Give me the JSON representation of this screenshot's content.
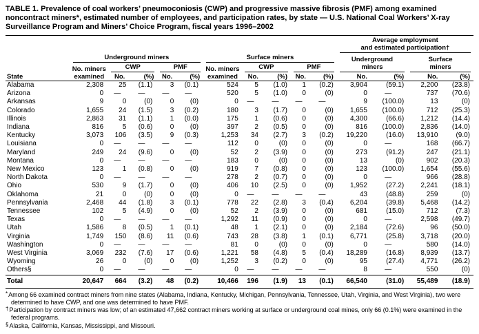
{
  "title": "TABLE 1. Prevalence of coal workers’ pneumoconiosis (CWP) and progressive massive fibrosis (PMF) among examined noncontract miners*, estimated number of employees, and participation rates, by state — U.S. National Coal Workers’ X-ray Surveillance Program and Miners’ Choice Program, fiscal years 1996–2002",
  "header": {
    "state": "State",
    "underground_group": "Underground miners",
    "surface_group": "Surface miners",
    "avg_group_line1": "Average employment",
    "avg_group_line2": "and estimated participation†",
    "examined_line1": "No. miners",
    "examined_line2": "examined",
    "cwp": "CWP",
    "pmf": "PMF",
    "avg_underground_line1": "Underground",
    "avg_underground_line2": "miners",
    "avg_surface_line1": "Surface",
    "avg_surface_line2": "miners",
    "no": "No.",
    "pct": "(%)"
  },
  "table": {
    "rows": [
      {
        "state": "Alabama",
        "cells": [
          "2,308",
          "25",
          "(1.1)",
          "3",
          "(0.1)",
          "524",
          "5",
          "(1.0)",
          "1",
          "(0.2)",
          "3,904",
          "(59.1)",
          "2,200",
          "(23.8)"
        ]
      },
      {
        "state": "Arizona",
        "cells": [
          "0",
          "—",
          "—",
          "—",
          "—",
          "520",
          "5",
          "(1.0)",
          "0",
          "(0)",
          "0",
          "—",
          "737",
          "(70.6)"
        ]
      },
      {
        "state": "Arkansas",
        "cells": [
          "9",
          "0",
          "(0)",
          "0",
          "(0)",
          "0",
          "—",
          "—",
          "—",
          "—",
          "9",
          "(100.0)",
          "13",
          "(0)"
        ]
      },
      {
        "state": "Colorado",
        "cells": [
          "1,655",
          "24",
          "(1.5)",
          "3",
          "(0.2)",
          "180",
          "3",
          "(1.7)",
          "0",
          "(0)",
          "1,655",
          "(100.0)",
          "712",
          "(25.3)"
        ]
      },
      {
        "state": "Illinois",
        "cells": [
          "2,863",
          "31",
          "(1.1)",
          "1",
          "(0.0)",
          "175",
          "1",
          "(0.6)",
          "0",
          "(0)",
          "4,300",
          "(66.6)",
          "1,212",
          "(14.4)"
        ]
      },
      {
        "state": "Indiana",
        "cells": [
          "816",
          "5",
          "(0.6)",
          "0",
          "(0)",
          "397",
          "2",
          "(0.5)",
          "0",
          "(0)",
          "816",
          "(100.0)",
          "2,836",
          "(14.0)"
        ]
      },
      {
        "state": "Kentucky",
        "cells": [
          "3,073",
          "106",
          "(3.5)",
          "9",
          "(0.3)",
          "1,253",
          "34",
          "(2.7)",
          "3",
          "(0.2)",
          "19,220",
          "(16.0)",
          "13,910",
          "(9.0)"
        ]
      },
      {
        "state": "Louisiana",
        "cells": [
          "0",
          "—",
          "—",
          "—",
          "—",
          "112",
          "0",
          "(0)",
          "0",
          "(0)",
          "0",
          "—",
          "168",
          "(66.7)"
        ]
      },
      {
        "state": "Maryland",
        "cells": [
          "249",
          "24",
          "(9.6)",
          "0",
          "(0)",
          "52",
          "2",
          "(3.9)",
          "0",
          "(0)",
          "273",
          "(91.2)",
          "247",
          "(21.1)"
        ]
      },
      {
        "state": "Montana",
        "cells": [
          "0",
          "—",
          "—",
          "—",
          "—",
          "183",
          "0",
          "(0)",
          "0",
          "(0)",
          "13",
          "(0)",
          "902",
          "(20.3)"
        ]
      },
      {
        "state": "New Mexico",
        "cells": [
          "123",
          "1",
          "(0.8)",
          "0",
          "(0)",
          "919",
          "7",
          "(0.8)",
          "0",
          "(0)",
          "123",
          "(100.0)",
          "1,654",
          "(55.6)"
        ]
      },
      {
        "state": "North Dakota",
        "cells": [
          "0",
          "—",
          "—",
          "—",
          "—",
          "278",
          "2",
          "(0.7)",
          "0",
          "(0)",
          "0",
          "—",
          "966",
          "(28.8)"
        ]
      },
      {
        "state": "Ohio",
        "cells": [
          "530",
          "9",
          "(1.7)",
          "0",
          "(0)",
          "406",
          "10",
          "(2.5)",
          "0",
          "(0)",
          "1,952",
          "(27.2)",
          "2,241",
          "(18.1)"
        ]
      },
      {
        "state": "Oklahoma",
        "cells": [
          "21",
          "0",
          "(0)",
          "0",
          "(0)",
          "0",
          "—",
          "—",
          "—",
          "—",
          "43",
          "(48.8)",
          "259",
          "(0)"
        ]
      },
      {
        "state": "Pennsylvania",
        "cells": [
          "2,468",
          "44",
          "(1.8)",
          "3",
          "(0.1)",
          "778",
          "22",
          "(2.8)",
          "3",
          "(0.4)",
          "6,204",
          "(39.8)",
          "5,468",
          "(14.2)"
        ]
      },
      {
        "state": "Tennessee",
        "cells": [
          "102",
          "5",
          "(4.9)",
          "0",
          "(0)",
          "52",
          "2",
          "(3.9)",
          "0",
          "(0)",
          "681",
          "(15.0)",
          "712",
          "(7.3)"
        ]
      },
      {
        "state": "Texas",
        "cells": [
          "0",
          "—",
          "—",
          "—",
          "—",
          "1,292",
          "11",
          "(0.9)",
          "0",
          "(0)",
          "0",
          "—",
          "2,598",
          "(49.7)"
        ]
      },
      {
        "state": "Utah",
        "cells": [
          "1,586",
          "8",
          "(0.5)",
          "1",
          "(0.1)",
          "48",
          "1",
          "(2.1)",
          "0",
          "(0)",
          "2,184",
          "(72.6)",
          "96",
          "(50.0)"
        ]
      },
      {
        "state": "Virginia",
        "cells": [
          "1,749",
          "150",
          "(8.6)",
          "11",
          "(0.6)",
          "743",
          "28",
          "(3.8)",
          "1",
          "(0.1)",
          "6,771",
          "(25.8)",
          "3,718",
          "(20.0)"
        ]
      },
      {
        "state": "Washington",
        "cells": [
          "0",
          "—",
          "—",
          "—",
          "—",
          "81",
          "0",
          "(0)",
          "0",
          "(0)",
          "0",
          "—",
          "580",
          "(14.0)"
        ]
      },
      {
        "state": "West Virginia",
        "cells": [
          "3,069",
          "232",
          "(7.6)",
          "17",
          "(0.6)",
          "1,221",
          "58",
          "(4.8)",
          "5",
          "(0.4)",
          "18,289",
          "(16.8)",
          "8,939",
          "(13.7)"
        ]
      },
      {
        "state": "Wyoming",
        "cells": [
          "26",
          "0",
          "(0)",
          "0",
          "(0)",
          "1,252",
          "3",
          "(0.2)",
          "0",
          "(0)",
          "95",
          "(27.4)",
          "4,771",
          "(26.2)"
        ]
      },
      {
        "state": "Others§",
        "cells": [
          "0",
          "—",
          "—",
          "—",
          "—",
          "0",
          "—",
          "—",
          "—",
          "—",
          "8",
          "—",
          "550",
          "(0)"
        ]
      }
    ],
    "total": {
      "state": "Total",
      "cells": [
        "20,647",
        "664",
        "(3.2)",
        "48",
        "(0.2)",
        "10,466",
        "196",
        "(1.9)",
        "13",
        "(0.1)",
        "66,540",
        "(31.0)",
        "55,489",
        "(18.9)"
      ]
    }
  },
  "footnotes": [
    {
      "marker": "*",
      "text": "Among 66 examined contract miners from nine states (Alabama, Indiana, Kentucky, Michigan, Pennsylvania, Tennessee, Utah, Virginia, and West Virginia), two were determined to have CWP, and one was determined to have PMF."
    },
    {
      "marker": "†",
      "text": "Participation by contract miners was low; of an estimated 47,662 contract miners working at surface or underground coal mines, only 66 (0.1%) were examined in the federal programs."
    },
    {
      "marker": "§",
      "text": "Alaska, California, Kansas, Mississippi, and Missouri."
    }
  ]
}
